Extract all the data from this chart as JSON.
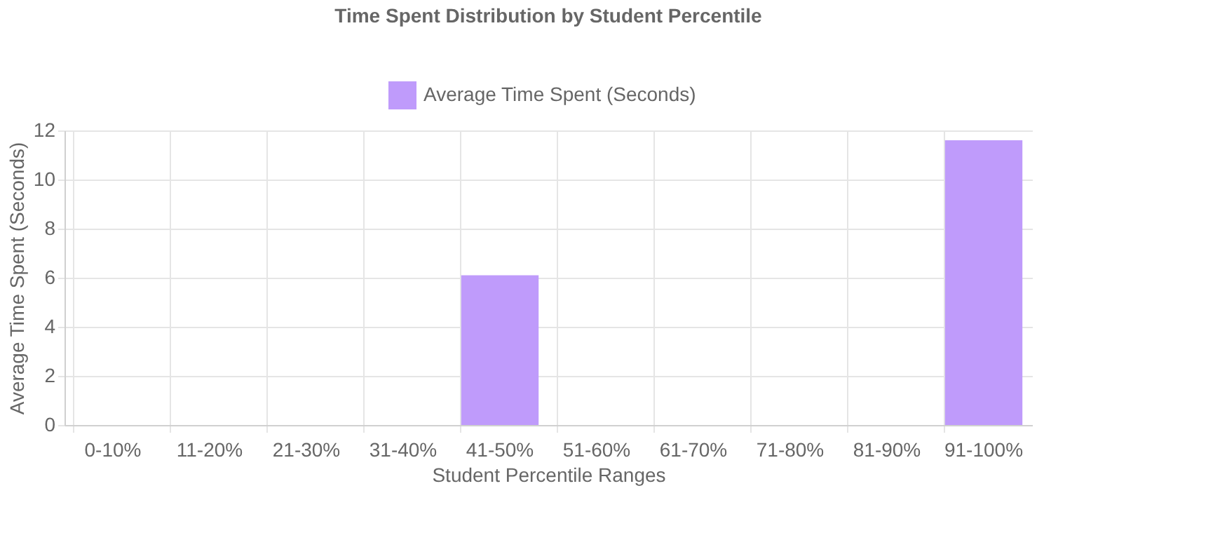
{
  "chart_data": {
    "type": "bar",
    "title": "Time Spent Distribution by Student Percentile",
    "xlabel": "Student Percentile Ranges",
    "ylabel": "Average Time Spent (Seconds)",
    "categories": [
      "0-10%",
      "11-20%",
      "21-30%",
      "31-40%",
      "41-50%",
      "51-60%",
      "61-70%",
      "71-80%",
      "81-90%",
      "91-100%"
    ],
    "series": [
      {
        "name": "Average Time Spent (Seconds)",
        "color": "#bf9bfb",
        "values": [
          0,
          0,
          0,
          0,
          6.1,
          0,
          0,
          0,
          0,
          11.6
        ]
      }
    ],
    "ylim": [
      0,
      12
    ],
    "yticks": [
      0,
      2,
      4,
      6,
      8,
      10,
      12
    ],
    "grid": true,
    "legend": "top"
  }
}
